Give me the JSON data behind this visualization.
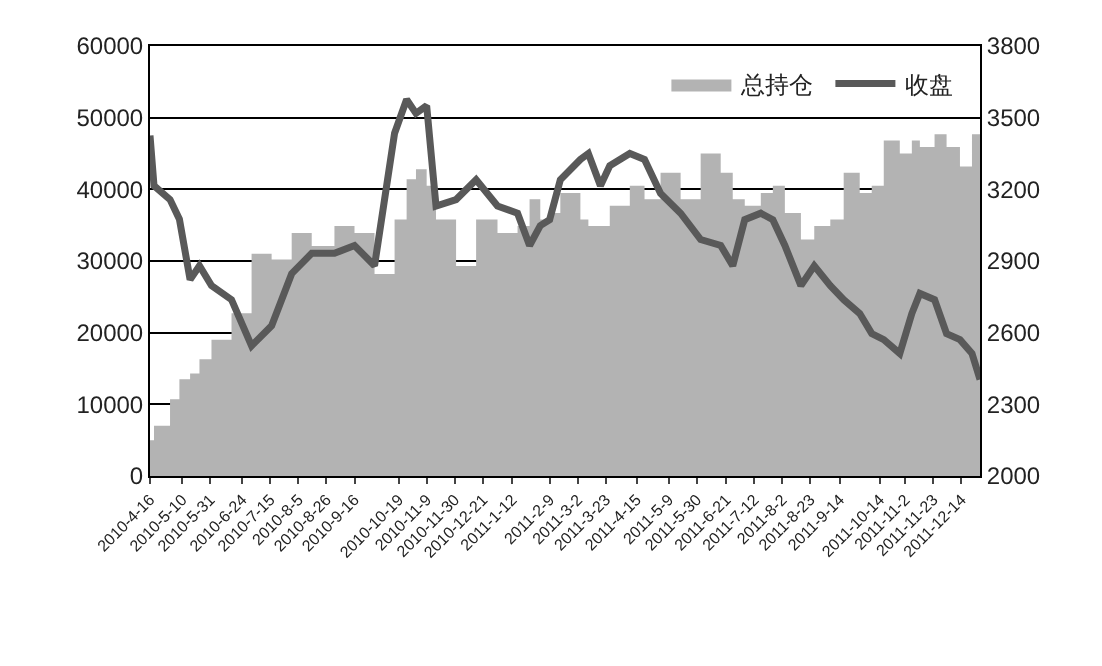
{
  "chart_data": {
    "type": "area",
    "x": [
      "2010-04-16",
      "2010-04-19",
      "2010-05-01",
      "2010-05-08",
      "2010-05-16",
      "2010-05-23",
      "2010-06-01",
      "2010-06-16",
      "2010-07-01",
      "2010-07-16",
      "2010-07-31",
      "2010-08-15",
      "2010-09-01",
      "2010-09-16",
      "2010-10-01",
      "2010-10-16",
      "2010-10-25",
      "2010-11-01",
      "2010-11-09",
      "2010-11-16",
      "2010-12-01",
      "2010-12-16",
      "2011-01-01",
      "2011-01-16",
      "2011-01-25",
      "2011-02-02",
      "2011-02-09",
      "2011-02-17",
      "2011-03-04",
      "2011-03-10",
      "2011-03-19",
      "2011-03-26",
      "2011-04-10",
      "2011-04-21",
      "2011-05-03",
      "2011-05-18",
      "2011-06-02",
      "2011-06-17",
      "2011-06-26",
      "2011-07-05",
      "2011-07-17",
      "2011-07-26",
      "2011-08-04",
      "2011-08-16",
      "2011-08-26",
      "2011-09-07",
      "2011-09-17",
      "2011-09-29",
      "2011-10-08",
      "2011-10-17",
      "2011-10-29",
      "2011-11-07",
      "2011-11-13",
      "2011-11-24",
      "2011-12-03",
      "2011-12-13",
      "2011-12-22",
      "2011-12-28"
    ],
    "series": [
      {
        "name": "总持仓",
        "color": "#b3b3b3",
        "values": [
          5000,
          7000,
          10700,
          13500,
          14300,
          16300,
          19000,
          22700,
          31000,
          30200,
          33900,
          32100,
          34900,
          33900,
          28200,
          35800,
          41400,
          42800,
          40500,
          35800,
          29300,
          35800,
          33900,
          34900,
          38600,
          35800,
          36700,
          39500,
          35800,
          34900,
          34900,
          37700,
          40500,
          38600,
          42300,
          38600,
          45000,
          42300,
          38600,
          37700,
          39500,
          40500,
          36700,
          33000,
          34900,
          35800,
          42300,
          39500,
          40500,
          46800,
          45000,
          46800,
          45900,
          47700,
          45900,
          43200,
          47700,
          55800
        ]
      },
      {
        "name": "收盘",
        "type": "line",
        "axis": "y2",
        "color": "#595959",
        "values": [
          3425,
          3215,
          3157,
          3075,
          2822,
          2880,
          2797,
          2738,
          2545,
          2629,
          2847,
          2932,
          2932,
          2965,
          2880,
          3435,
          3576,
          3518,
          3550,
          3130,
          3157,
          3240,
          3130,
          3100,
          2965,
          3048,
          3073,
          3240,
          3325,
          3350,
          3215,
          3299,
          3350,
          3325,
          3183,
          3100,
          2990,
          2965,
          2880,
          3073,
          3100,
          3073,
          2965,
          2797,
          2880,
          2797,
          2738,
          2680,
          2596,
          2571,
          2513,
          2680,
          2764,
          2738,
          2596,
          2571,
          2513,
          2404
        ]
      }
    ],
    "xlim": [
      "2010-04-16",
      "2011-12-28"
    ],
    "xticks": [
      {
        "value": "2010-04-16",
        "label": "2010-4-16"
      },
      {
        "value": "2010-05-10",
        "label": "2010-5-10"
      },
      {
        "value": "2010-05-31",
        "label": "2010-5-31"
      },
      {
        "value": "2010-06-24",
        "label": "2010-6-24"
      },
      {
        "value": "2010-07-15",
        "label": "2010-7-15"
      },
      {
        "value": "2010-08-05",
        "label": "2010-8-5"
      },
      {
        "value": "2010-08-26",
        "label": "2010-8-26"
      },
      {
        "value": "2010-09-16",
        "label": "2010-9-16"
      },
      {
        "value": "2010-10-19",
        "label": "2010-10-19"
      },
      {
        "value": "2010-11-09",
        "label": "2010-11-9"
      },
      {
        "value": "2010-11-30",
        "label": "2010-11-30"
      },
      {
        "value": "2010-12-21",
        "label": "2010-12-21"
      },
      {
        "value": "2011-01-12",
        "label": "2011-1-12"
      },
      {
        "value": "2011-02-09",
        "label": "2011-2-9"
      },
      {
        "value": "2011-03-02",
        "label": "2011-3-2"
      },
      {
        "value": "2011-03-23",
        "label": "2011-3-23"
      },
      {
        "value": "2011-04-15",
        "label": "2011-4-15"
      },
      {
        "value": "2011-05-09",
        "label": "2011-5-9"
      },
      {
        "value": "2011-05-30",
        "label": "2011-5-30"
      },
      {
        "value": "2011-06-21",
        "label": "2011-6-21"
      },
      {
        "value": "2011-07-12",
        "label": "2011-7-12"
      },
      {
        "value": "2011-08-02",
        "label": "2011-8-2"
      },
      {
        "value": "2011-08-23",
        "label": "2011-8-23"
      },
      {
        "value": "2011-09-14",
        "label": "2011-9-14"
      },
      {
        "value": "2011-10-14",
        "label": "2011-10-14"
      },
      {
        "value": "2011-11-02",
        "label": "2011-11-2"
      },
      {
        "value": "2011-11-23",
        "label": "2011-11-23"
      },
      {
        "value": "2011-12-14",
        "label": "2011-12-14"
      }
    ],
    "ylim": [
      0,
      60000
    ],
    "yticks": [
      0,
      10000,
      20000,
      30000,
      40000,
      50000,
      60000
    ],
    "y2lim": [
      2000,
      3800
    ],
    "y2ticks": [
      2000,
      2300,
      2600,
      2900,
      3200,
      3500,
      3800
    ],
    "grid": "y",
    "legend": "top right"
  }
}
